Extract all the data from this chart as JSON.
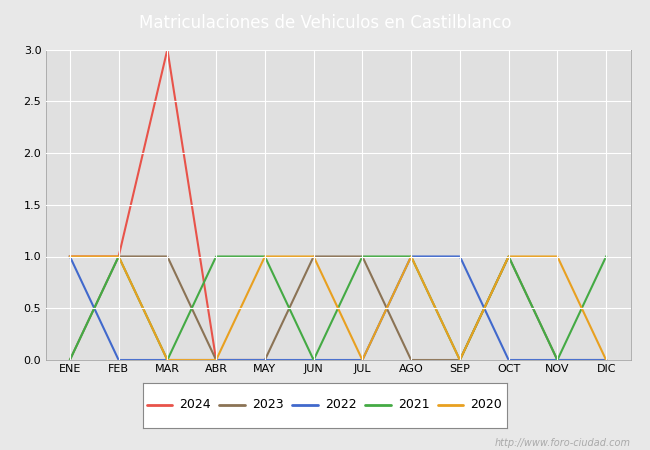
{
  "title": "Matriculaciones de Vehiculos en Castilblanco",
  "months": [
    "ENE",
    "FEB",
    "MAR",
    "ABR",
    "MAY",
    "JUN",
    "JUL",
    "AGO",
    "SEP",
    "OCT",
    "NOV",
    "DIC"
  ],
  "series": {
    "2024": {
      "color": "#e8534a",
      "data": [
        1,
        1,
        3,
        0,
        0,
        null,
        null,
        null,
        null,
        null,
        null,
        null
      ]
    },
    "2023": {
      "color": "#8b7355",
      "data": [
        0,
        1,
        1,
        0,
        0,
        1,
        1,
        0,
        0,
        1,
        0,
        0
      ]
    },
    "2022": {
      "color": "#4169cc",
      "data": [
        1,
        0,
        0,
        0,
        0,
        0,
        0,
        1,
        1,
        0,
        0,
        0
      ]
    },
    "2021": {
      "color": "#44aa44",
      "data": [
        0,
        1,
        0,
        1,
        1,
        0,
        1,
        1,
        0,
        1,
        0,
        1
      ]
    },
    "2020": {
      "color": "#e8a020",
      "data": [
        1,
        1,
        0,
        0,
        1,
        1,
        0,
        1,
        0,
        1,
        1,
        0
      ]
    }
  },
  "ylim": [
    0,
    3.0
  ],
  "yticks": [
    0.0,
    0.5,
    1.0,
    1.5,
    2.0,
    2.5,
    3.0
  ],
  "fig_bg_color": "#e8e8e8",
  "plot_bg_color": "#e0e0e0",
  "title_bg_color": "#5577cc",
  "title_text_color": "#ffffff",
  "grid_color": "#ffffff",
  "watermark": "http://www.foro-ciudad.com",
  "legend_years": [
    "2024",
    "2023",
    "2022",
    "2021",
    "2020"
  ],
  "title_fontsize": 12,
  "tick_fontsize": 8,
  "legend_fontsize": 9
}
